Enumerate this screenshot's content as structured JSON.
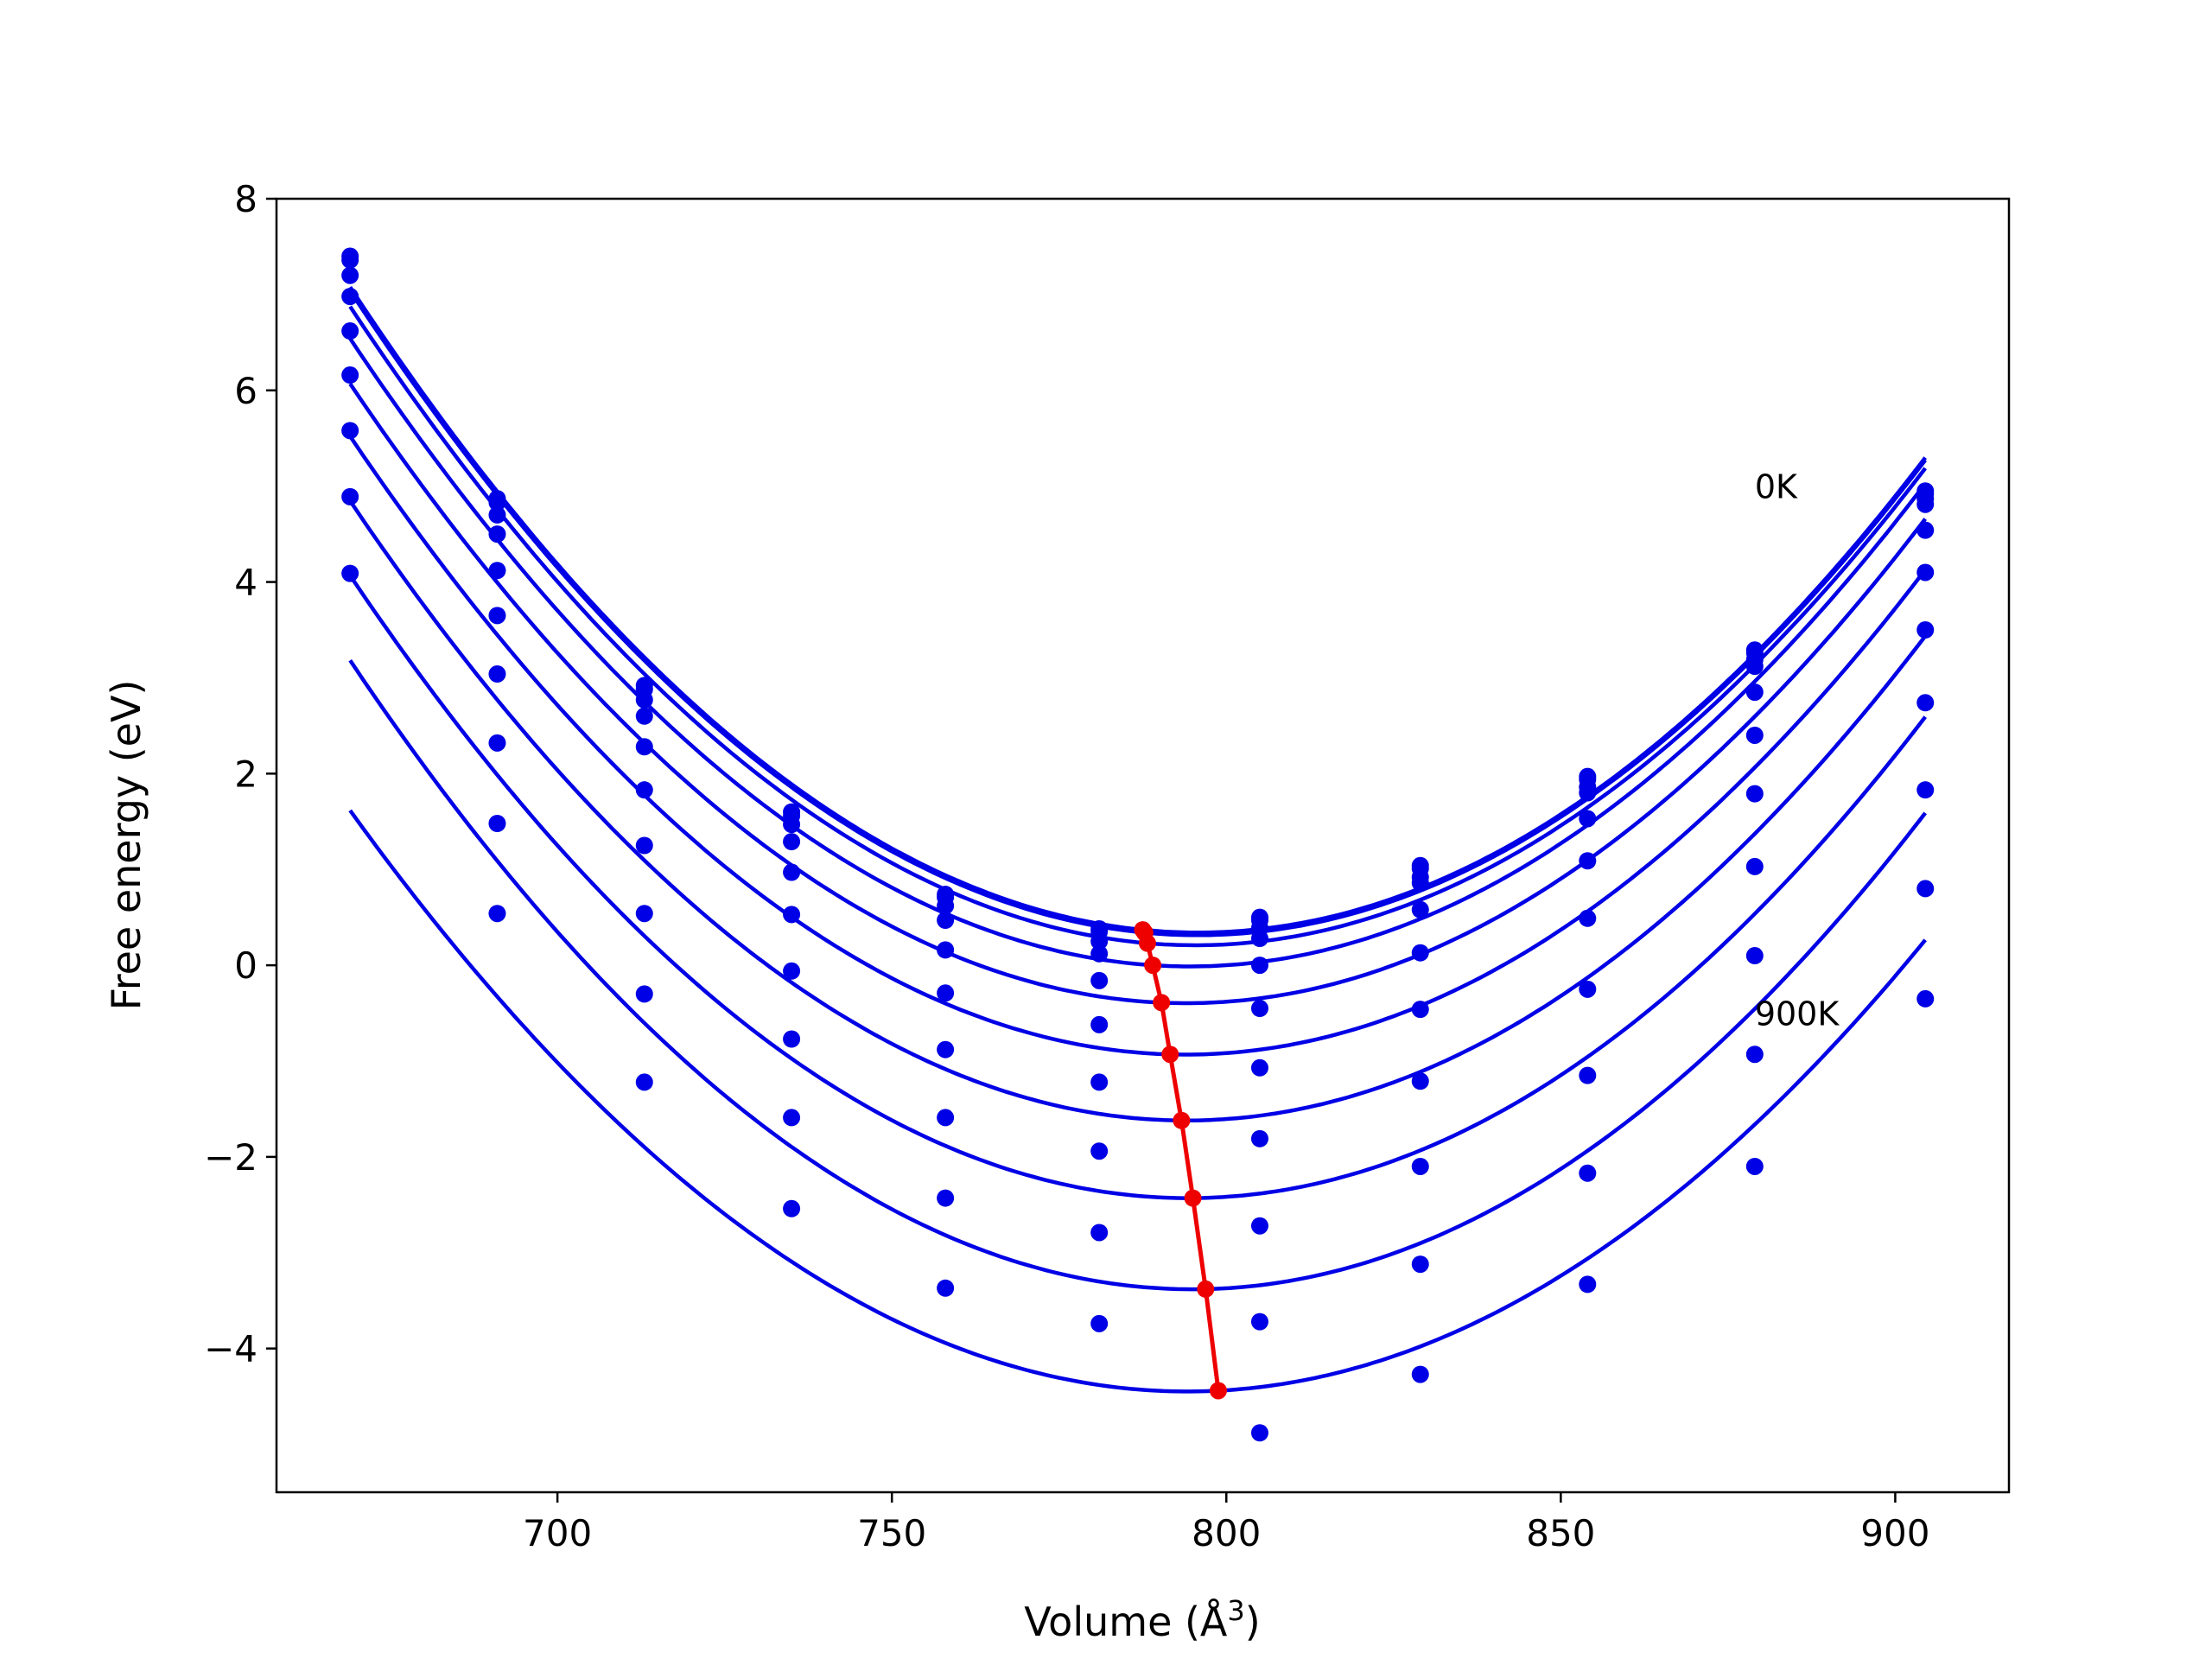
{
  "chart_data": {
    "type": "scatter",
    "title": "",
    "xlabel": "Volume (Å",
    "xlabel_superscript": "3",
    "xlabel_suffix": ")",
    "ylabel": "Free energy (eV)",
    "xlim": [
      658,
      917
    ],
    "ylim": [
      -5.5,
      8.0
    ],
    "x_ticks": [
      700,
      750,
      800,
      850,
      900
    ],
    "x_tick_labels": [
      "700",
      "750",
      "800",
      "850",
      "900"
    ],
    "y_ticks": [
      -4,
      -2,
      0,
      2,
      4,
      6,
      8
    ],
    "y_tick_labels": [
      "−4",
      "−2",
      "0",
      "2",
      "4",
      "6",
      "8"
    ],
    "grid": false,
    "legend": "none",
    "colors": {
      "curves": "#0000e6",
      "points": "#0000e6",
      "minimum_path": "#ee0000"
    },
    "annotations": [
      {
        "text": "0K",
        "x": 879,
        "y": 5.0
      },
      {
        "text": "900K",
        "x": 879,
        "y": -0.5
      }
    ],
    "volumes": [
      669,
      691,
      713,
      735,
      758,
      781,
      805,
      829,
      854,
      879,
      904.5
    ],
    "series": [
      {
        "values": [
          7.4,
          4.87,
          2.92,
          1.6,
          0.74,
          0.38,
          0.5,
          1.04,
          1.97,
          3.29,
          4.95
        ],
        "fit_min": {
          "x": 787.5,
          "y": 0.37
        }
      },
      {
        "values": [
          7.36,
          4.83,
          2.88,
          1.56,
          0.71,
          0.35,
          0.47,
          1.01,
          1.94,
          3.26,
          4.92
        ],
        "fit_min": {
          "x": 787.8,
          "y": 0.34
        }
      },
      {
        "values": [
          7.2,
          4.7,
          2.77,
          1.47,
          0.62,
          0.25,
          0.39,
          0.92,
          1.86,
          3.19,
          4.87
        ],
        "fit_min": {
          "x": 788.2,
          "y": 0.23
        }
      },
      {
        "values": [
          6.98,
          4.5,
          2.6,
          1.29,
          0.47,
          0.12,
          0.28,
          0.86,
          1.8,
          3.12,
          4.81
        ],
        "fit_min": {
          "x": 789.0,
          "y": 0.0
        }
      },
      {
        "values": [
          6.62,
          4.12,
          2.28,
          0.97,
          0.16,
          -0.16,
          0.0,
          0.58,
          1.53,
          2.85,
          4.54
        ],
        "fit_min": {
          "x": 790.3,
          "y": -0.39
        }
      },
      {
        "values": [
          6.16,
          3.65,
          1.83,
          0.53,
          -0.29,
          -0.62,
          -0.45,
          0.13,
          1.09,
          2.4,
          4.1
        ],
        "fit_min": {
          "x": 791.6,
          "y": -0.93
        }
      },
      {
        "values": [
          5.58,
          3.04,
          1.25,
          -0.06,
          -0.88,
          -1.22,
          -1.07,
          -0.46,
          0.49,
          1.79,
          3.5
        ],
        "fit_min": {
          "x": 793.3,
          "y": -1.62
        }
      },
      {
        "values": [
          4.89,
          2.32,
          0.54,
          -0.77,
          -1.59,
          -1.94,
          -1.81,
          -1.21,
          -0.25,
          1.03,
          2.74
        ],
        "fit_min": {
          "x": 795.0,
          "y": -2.43
        }
      },
      {
        "values": [
          4.09,
          1.48,
          -0.3,
          -1.59,
          -2.43,
          -2.79,
          -2.72,
          -2.1,
          -1.15,
          0.1,
          1.83
        ],
        "fit_min": {
          "x": 796.9,
          "y": -3.38
        }
      },
      {
        "values": [
          null,
          0.54,
          -1.22,
          -2.54,
          -3.37,
          -3.74,
          -3.72,
          -3.12,
          -2.17,
          -0.93,
          0.8
        ],
        "fit_min": {
          "x": 798.8,
          "y": -4.44
        }
      },
      {
        "values": [
          null,
          null,
          null,
          null,
          null,
          null,
          -4.88,
          -4.27,
          -3.33,
          -2.1,
          -0.35
        ],
        "fit_min": null
      }
    ],
    "minimum_path": [
      {
        "x": 787.5,
        "y": 0.37
      },
      {
        "x": 787.8,
        "y": 0.34
      },
      {
        "x": 788.2,
        "y": 0.23
      },
      {
        "x": 789.0,
        "y": 0.0
      },
      {
        "x": 790.3,
        "y": -0.39
      },
      {
        "x": 791.6,
        "y": -0.93
      },
      {
        "x": 793.3,
        "y": -1.62
      },
      {
        "x": 795.0,
        "y": -2.43
      },
      {
        "x": 796.9,
        "y": -3.38
      },
      {
        "x": 798.8,
        "y": -4.44
      }
    ]
  }
}
